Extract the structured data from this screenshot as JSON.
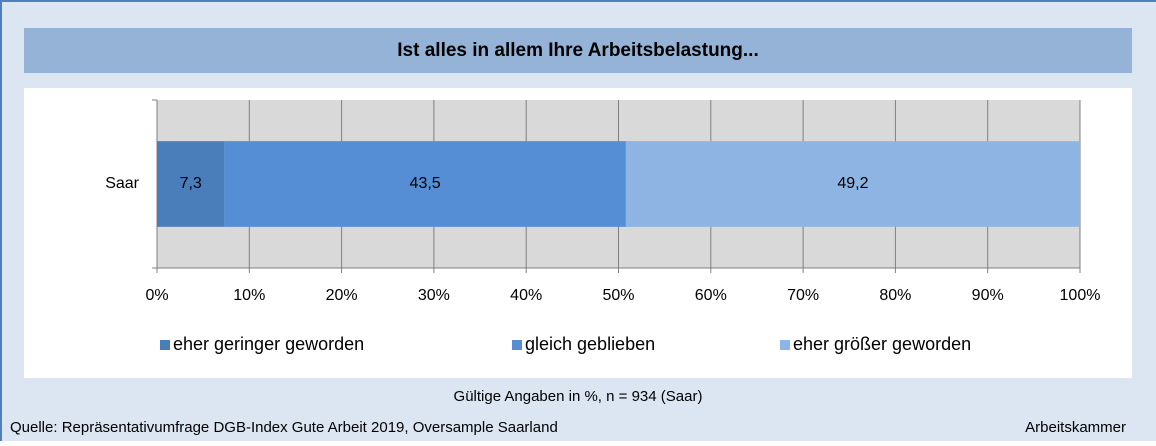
{
  "chart_data": {
    "type": "stacked_barh",
    "title": "Ist alles in allem Ihre Arbeitsbelastung...",
    "categories": [
      "Saar"
    ],
    "series": [
      {
        "name": "eher geringer geworden",
        "color": "#4a7ebb",
        "values": [
          7.3
        ],
        "value_labels": [
          "7,3"
        ]
      },
      {
        "name": "gleich geblieben",
        "color": "#558ed5",
        "values": [
          43.5
        ],
        "value_labels": [
          "43,5"
        ]
      },
      {
        "name": "eher größer geworden",
        "color": "#8eb4e3",
        "values": [
          49.2
        ],
        "value_labels": [
          "49,2"
        ]
      }
    ],
    "xlim": [
      0,
      100
    ],
    "xticks": [
      {
        "value": 0,
        "label": "0%"
      },
      {
        "value": 10,
        "label": "10%"
      },
      {
        "value": 20,
        "label": "20%"
      },
      {
        "value": 30,
        "label": "30%"
      },
      {
        "value": 40,
        "label": "40%"
      },
      {
        "value": 50,
        "label": "50%"
      },
      {
        "value": 60,
        "label": "60%"
      },
      {
        "value": 70,
        "label": "70%"
      },
      {
        "value": 80,
        "label": "80%"
      },
      {
        "value": 90,
        "label": "90%"
      },
      {
        "value": 100,
        "label": "100%"
      }
    ],
    "grid": true,
    "legend": "bottom",
    "footnote": "Gültige Angaben in %, n = 934 (Saar)",
    "source": "Quelle: Repräsentativumfrage DGB-Index Gute Arbeit 2019, Oversample Saarland",
    "publisher": "Arbeitskammer"
  }
}
